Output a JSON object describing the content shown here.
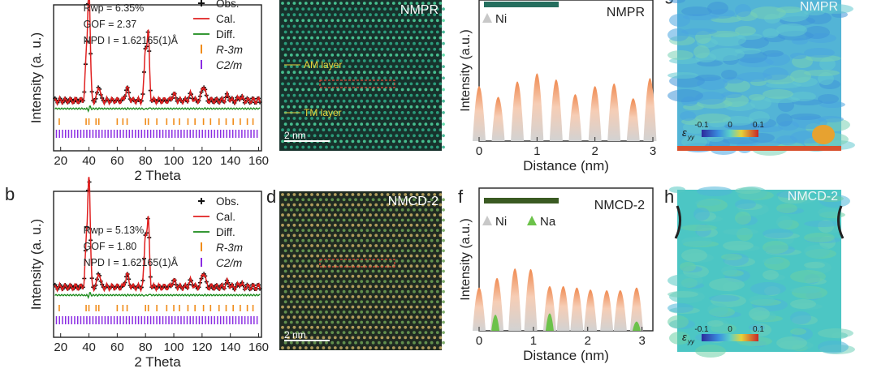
{
  "panels": [
    {
      "letter": "",
      "type": "xrd",
      "stats": [
        "Rwp = 6.35%",
        "GOF = 2.37",
        "NPD I = 1.62165(1)Å"
      ],
      "legend": [
        "Obs.",
        "Cal.",
        "Diff.",
        "R-3m",
        "C2/m"
      ],
      "xlabel": "2 Theta",
      "ylabel": "Intensity (a. u.)",
      "xticks": [
        "20",
        "40",
        "60",
        "80",
        "100",
        "120",
        "140",
        "160"
      ]
    },
    {
      "letter": "b",
      "type": "xrd",
      "stats": [
        "Rwp = 5.13%",
        "GOF = 1.80",
        "NPD I = 1.62165(1)Å"
      ],
      "legend": [
        "Obs.",
        "Cal.",
        "Diff.",
        "R-3m",
        "C2/m"
      ],
      "xlabel": "2 Theta",
      "ylabel": "Intensity (a. u.)",
      "xticks": [
        "20",
        "40",
        "60",
        "80",
        "100",
        "120",
        "140",
        "160"
      ]
    }
  ],
  "stem": [
    {
      "letter": "",
      "sample": "NMPR",
      "annotations": [
        "AM layer",
        "TM layer"
      ],
      "scale": "2 nm"
    },
    {
      "letter": "d",
      "sample": "NMCD-2",
      "annotations": [],
      "scale": "2 nm"
    }
  ],
  "profiles": [
    {
      "letter": "",
      "sample": "NMPR",
      "legend": [
        "Ni"
      ],
      "xlabel": "Distance (nm)",
      "ylabel": "Intensity (a.u.)",
      "xticks": [
        "0",
        "1",
        "2",
        "3"
      ]
    },
    {
      "letter": "f",
      "sample": "NMCD-2",
      "legend": [
        "Ni",
        "Na"
      ],
      "xlabel": "Distance (nm)",
      "ylabel": "Intensity (a.u.)",
      "xticks": [
        "0",
        "1",
        "2",
        "3"
      ]
    }
  ],
  "strain": [
    {
      "letter": "g",
      "sample": "NMPR",
      "symbol": "ε",
      "sub": "yy",
      "ticks": [
        "-0.1",
        "0",
        "0.1"
      ]
    },
    {
      "letter": "h",
      "sample": "NMCD-2",
      "symbol": "ε",
      "sub": "yy",
      "ticks": [
        "-0.1",
        "0",
        "0.1"
      ]
    }
  ],
  "chart_data": [
    {
      "type": "line",
      "title": "",
      "xlabel": "2 Theta",
      "ylabel": "Intensity (a. u.)",
      "xlim": [
        15,
        162
      ],
      "series": [
        {
          "name": "Obs.",
          "x": [
            15,
            35,
            40,
            42,
            47,
            55,
            65,
            67,
            75,
            80,
            82,
            90,
            100,
            110,
            120,
            122,
            130,
            145,
            160
          ],
          "y": [
            0.1,
            0.14,
            1.0,
            0.35,
            0.2,
            0.13,
            0.15,
            0.25,
            0.13,
            0.55,
            0.62,
            0.16,
            0.15,
            0.17,
            0.2,
            0.26,
            0.15,
            0.14,
            0.14
          ]
        },
        {
          "name": "Cal.",
          "x": [
            15,
            35,
            40,
            42,
            47,
            55,
            65,
            67,
            75,
            80,
            82,
            90,
            100,
            110,
            120,
            122,
            130,
            145,
            160
          ],
          "y": [
            0.1,
            0.14,
            1.0,
            0.35,
            0.2,
            0.13,
            0.15,
            0.25,
            0.13,
            0.55,
            0.62,
            0.16,
            0.15,
            0.17,
            0.2,
            0.26,
            0.15,
            0.14,
            0.14
          ]
        },
        {
          "name": "Diff.",
          "x": [
            15,
            40,
            82,
            160
          ],
          "y": [
            0,
            0,
            0,
            0
          ]
        }
      ]
    },
    {
      "type": "line",
      "title": "",
      "xlabel": "2 Theta",
      "ylabel": "Intensity (a. u.)",
      "xlim": [
        15,
        162
      ],
      "series": [
        {
          "name": "Obs.",
          "x": [
            15,
            35,
            40,
            42,
            47,
            55,
            65,
            67,
            75,
            80,
            82,
            90,
            100,
            110,
            120,
            122,
            130,
            145,
            160
          ],
          "y": [
            0.1,
            0.13,
            1.0,
            0.33,
            0.22,
            0.12,
            0.14,
            0.22,
            0.12,
            0.55,
            0.62,
            0.15,
            0.14,
            0.16,
            0.18,
            0.22,
            0.14,
            0.13,
            0.13
          ]
        },
        {
          "name": "Cal.",
          "x": [
            15,
            35,
            40,
            42,
            47,
            55,
            65,
            67,
            75,
            80,
            82,
            90,
            100,
            110,
            120,
            122,
            130,
            145,
            160
          ],
          "y": [
            0.1,
            0.13,
            1.0,
            0.33,
            0.22,
            0.12,
            0.14,
            0.22,
            0.12,
            0.55,
            0.62,
            0.15,
            0.14,
            0.16,
            0.18,
            0.22,
            0.14,
            0.13,
            0.13
          ]
        },
        {
          "name": "Diff.",
          "x": [
            15,
            40,
            82,
            160
          ],
          "y": [
            0,
            0,
            0,
            0
          ]
        }
      ]
    },
    {
      "type": "area",
      "title": "",
      "xlabel": "Distance (nm)",
      "ylabel": "Intensity (a.u.)",
      "xlim": [
        0,
        3
      ],
      "series": [
        {
          "name": "Ni",
          "x": [
            0,
            0.33,
            0.66,
            1.0,
            1.33,
            1.66,
            2.0,
            2.33,
            2.66,
            2.95
          ],
          "y": [
            0.78,
            0.62,
            0.85,
            0.97,
            0.88,
            0.66,
            0.78,
            0.82,
            0.6,
            0.9
          ]
        }
      ]
    },
    {
      "type": "area",
      "title": "",
      "xlabel": "Distance (nm)",
      "ylabel": "Intensity (a.u.)",
      "xlim": [
        0,
        3.2
      ],
      "series": [
        {
          "name": "Ni",
          "x": [
            0,
            0.33,
            0.66,
            0.95,
            1.3,
            1.55,
            1.8,
            2.05,
            2.35,
            2.6,
            2.9
          ],
          "y": [
            0.6,
            0.74,
            0.88,
            0.87,
            0.62,
            0.62,
            0.6,
            0.57,
            0.56,
            0.56,
            0.6
          ]
        },
        {
          "name": "Na",
          "x": [
            0.3,
            1.3,
            2.9
          ],
          "y": [
            0.2,
            0.22,
            0.1
          ]
        }
      ]
    }
  ]
}
